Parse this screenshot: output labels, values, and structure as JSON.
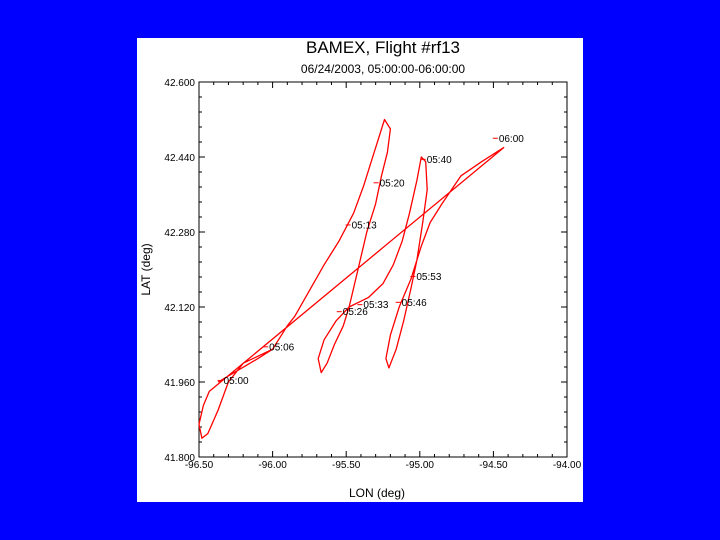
{
  "chart_data": {
    "type": "line",
    "title": "BAMEX, Flight #rf13",
    "subtitle": "06/24/2003, 05:00:00-06:00:00",
    "xlabel": "LON (deg)",
    "ylabel": "LAT (deg)",
    "xlim": [
      -96.5,
      -94.0
    ],
    "ylim": [
      41.8,
      42.6
    ],
    "grid": false,
    "x_ticks": [
      "-96.50",
      "-96.00",
      "-95.50",
      "-95.00",
      "-94.50",
      "-94.00"
    ],
    "y_ticks": [
      "41.800",
      "41.960",
      "42.120",
      "42.280",
      "42.440",
      "42.600"
    ],
    "series": [
      {
        "name": "",
        "color": "#ff0000",
        "points": [
          [
            -96.37,
            41.96
          ],
          [
            -96.1,
            42.01
          ],
          [
            -96.0,
            42.03
          ],
          [
            -95.9,
            42.08
          ],
          [
            -95.85,
            42.1
          ],
          [
            -95.65,
            42.21
          ],
          [
            -95.55,
            42.26
          ],
          [
            -95.5,
            42.29
          ],
          [
            -95.45,
            42.32
          ],
          [
            -95.38,
            42.38
          ],
          [
            -95.33,
            42.43
          ],
          [
            -95.28,
            42.48
          ],
          [
            -95.24,
            42.52
          ],
          [
            -95.2,
            42.5
          ],
          [
            -95.22,
            42.45
          ],
          [
            -95.26,
            42.4
          ],
          [
            -95.3,
            42.34
          ],
          [
            -95.36,
            42.28
          ],
          [
            -95.42,
            42.2
          ],
          [
            -95.48,
            42.12
          ],
          [
            -95.52,
            42.08
          ],
          [
            -95.58,
            42.04
          ],
          [
            -95.63,
            42.0
          ],
          [
            -95.67,
            41.98
          ],
          [
            -95.69,
            42.01
          ],
          [
            -95.65,
            42.05
          ],
          [
            -95.57,
            42.09
          ],
          [
            -95.48,
            42.12
          ],
          [
            -95.35,
            42.14
          ],
          [
            -95.25,
            42.17
          ],
          [
            -95.18,
            42.21
          ],
          [
            -95.12,
            42.26
          ],
          [
            -95.07,
            42.32
          ],
          [
            -95.02,
            42.39
          ],
          [
            -94.99,
            42.44
          ],
          [
            -94.96,
            42.43
          ],
          [
            -94.95,
            42.37
          ],
          [
            -94.98,
            42.3
          ],
          [
            -95.02,
            42.22
          ],
          [
            -95.06,
            42.16
          ],
          [
            -95.11,
            42.09
          ],
          [
            -95.16,
            42.03
          ],
          [
            -95.21,
            41.99
          ],
          [
            -95.23,
            42.01
          ],
          [
            -95.2,
            42.06
          ],
          [
            -95.14,
            42.12
          ],
          [
            -95.06,
            42.18
          ],
          [
            -94.99,
            42.25
          ],
          [
            -94.93,
            42.3
          ],
          [
            -94.85,
            42.34
          ],
          [
            -94.72,
            42.4
          ],
          [
            -94.58,
            42.43
          ],
          [
            -94.43,
            42.46
          ],
          [
            -96.43,
            41.94
          ],
          [
            -96.47,
            41.91
          ],
          [
            -96.5,
            41.87
          ],
          [
            -96.48,
            41.84
          ],
          [
            -96.44,
            41.85
          ],
          [
            -96.37,
            41.9
          ],
          [
            -96.3,
            41.96
          ],
          [
            -96.2,
            42.0
          ],
          [
            -96.0,
            42.03
          ]
        ]
      }
    ],
    "annotations": [
      {
        "text": "05:00",
        "x": -96.34,
        "y": 41.963
      },
      {
        "text": "05:06",
        "x": -96.03,
        "y": 42.035
      },
      {
        "text": "05:13",
        "x": -95.47,
        "y": 42.295
      },
      {
        "text": "05:20",
        "x": -95.28,
        "y": 42.385
      },
      {
        "text": "05:26",
        "x": -95.53,
        "y": 42.11
      },
      {
        "text": "05:33",
        "x": -95.39,
        "y": 42.125
      },
      {
        "text": "05:40",
        "x": -94.96,
        "y": 42.435
      },
      {
        "text": "05:46",
        "x": -95.13,
        "y": 42.13
      },
      {
        "text": "05:53",
        "x": -95.03,
        "y": 42.185
      },
      {
        "text": "06:00",
        "x": -94.47,
        "y": 42.48
      }
    ]
  }
}
